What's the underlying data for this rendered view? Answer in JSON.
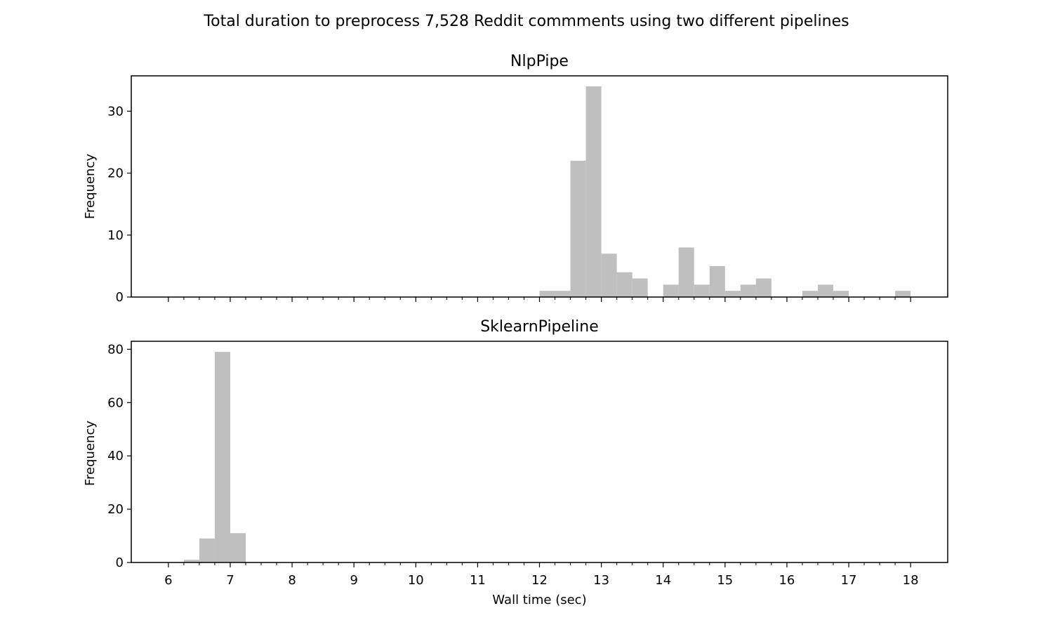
{
  "figure": {
    "title": "Total duration to preprocess 7,528 Reddit commments using two different pipelines"
  },
  "chart_data": [
    {
      "type": "bar",
      "title": "NlpPipe",
      "xlabel": "",
      "ylabel": "Frequency",
      "ylim": [
        0,
        35.7
      ],
      "yticks": [
        0,
        10,
        20,
        30
      ],
      "xlim": [
        5.4,
        18.6
      ],
      "xticks": [
        6,
        7,
        8,
        9,
        10,
        11,
        12,
        13,
        14,
        15,
        16,
        17,
        18
      ],
      "xtick_labels_visible": false,
      "minor_xticks_per_unit": 4,
      "bar_color": "#bfbfbf",
      "grid": false,
      "bins": [
        {
          "start": 12.0,
          "end": 12.25,
          "value": 1
        },
        {
          "start": 12.25,
          "end": 12.5,
          "value": 1
        },
        {
          "start": 12.5,
          "end": 12.75,
          "value": 22
        },
        {
          "start": 12.75,
          "end": 13.0,
          "value": 34
        },
        {
          "start": 13.0,
          "end": 13.25,
          "value": 7
        },
        {
          "start": 13.25,
          "end": 13.5,
          "value": 4
        },
        {
          "start": 13.5,
          "end": 13.75,
          "value": 3
        },
        {
          "start": 14.0,
          "end": 14.25,
          "value": 2
        },
        {
          "start": 14.25,
          "end": 14.5,
          "value": 8
        },
        {
          "start": 14.5,
          "end": 14.75,
          "value": 2
        },
        {
          "start": 14.75,
          "end": 15.0,
          "value": 5
        },
        {
          "start": 15.0,
          "end": 15.25,
          "value": 1
        },
        {
          "start": 15.25,
          "end": 15.5,
          "value": 2
        },
        {
          "start": 15.5,
          "end": 15.75,
          "value": 3
        },
        {
          "start": 16.25,
          "end": 16.5,
          "value": 1
        },
        {
          "start": 16.5,
          "end": 16.75,
          "value": 2
        },
        {
          "start": 16.75,
          "end": 17.0,
          "value": 1
        },
        {
          "start": 17.75,
          "end": 18.0,
          "value": 1
        }
      ]
    },
    {
      "type": "bar",
      "title": "SklearnPipeline",
      "xlabel": "Wall time (sec)",
      "ylabel": "Frequency",
      "ylim": [
        0,
        83
      ],
      "yticks": [
        0,
        20,
        40,
        60,
        80
      ],
      "xlim": [
        5.4,
        18.6
      ],
      "xticks": [
        6,
        7,
        8,
        9,
        10,
        11,
        12,
        13,
        14,
        15,
        16,
        17,
        18
      ],
      "xtick_labels_visible": true,
      "minor_xticks_per_unit": 4,
      "bar_color": "#bfbfbf",
      "grid": false,
      "bins": [
        {
          "start": 6.25,
          "end": 6.5,
          "value": 1
        },
        {
          "start": 6.5,
          "end": 6.75,
          "value": 9
        },
        {
          "start": 6.75,
          "end": 7.0,
          "value": 79
        },
        {
          "start": 7.0,
          "end": 7.25,
          "value": 11
        }
      ]
    }
  ]
}
